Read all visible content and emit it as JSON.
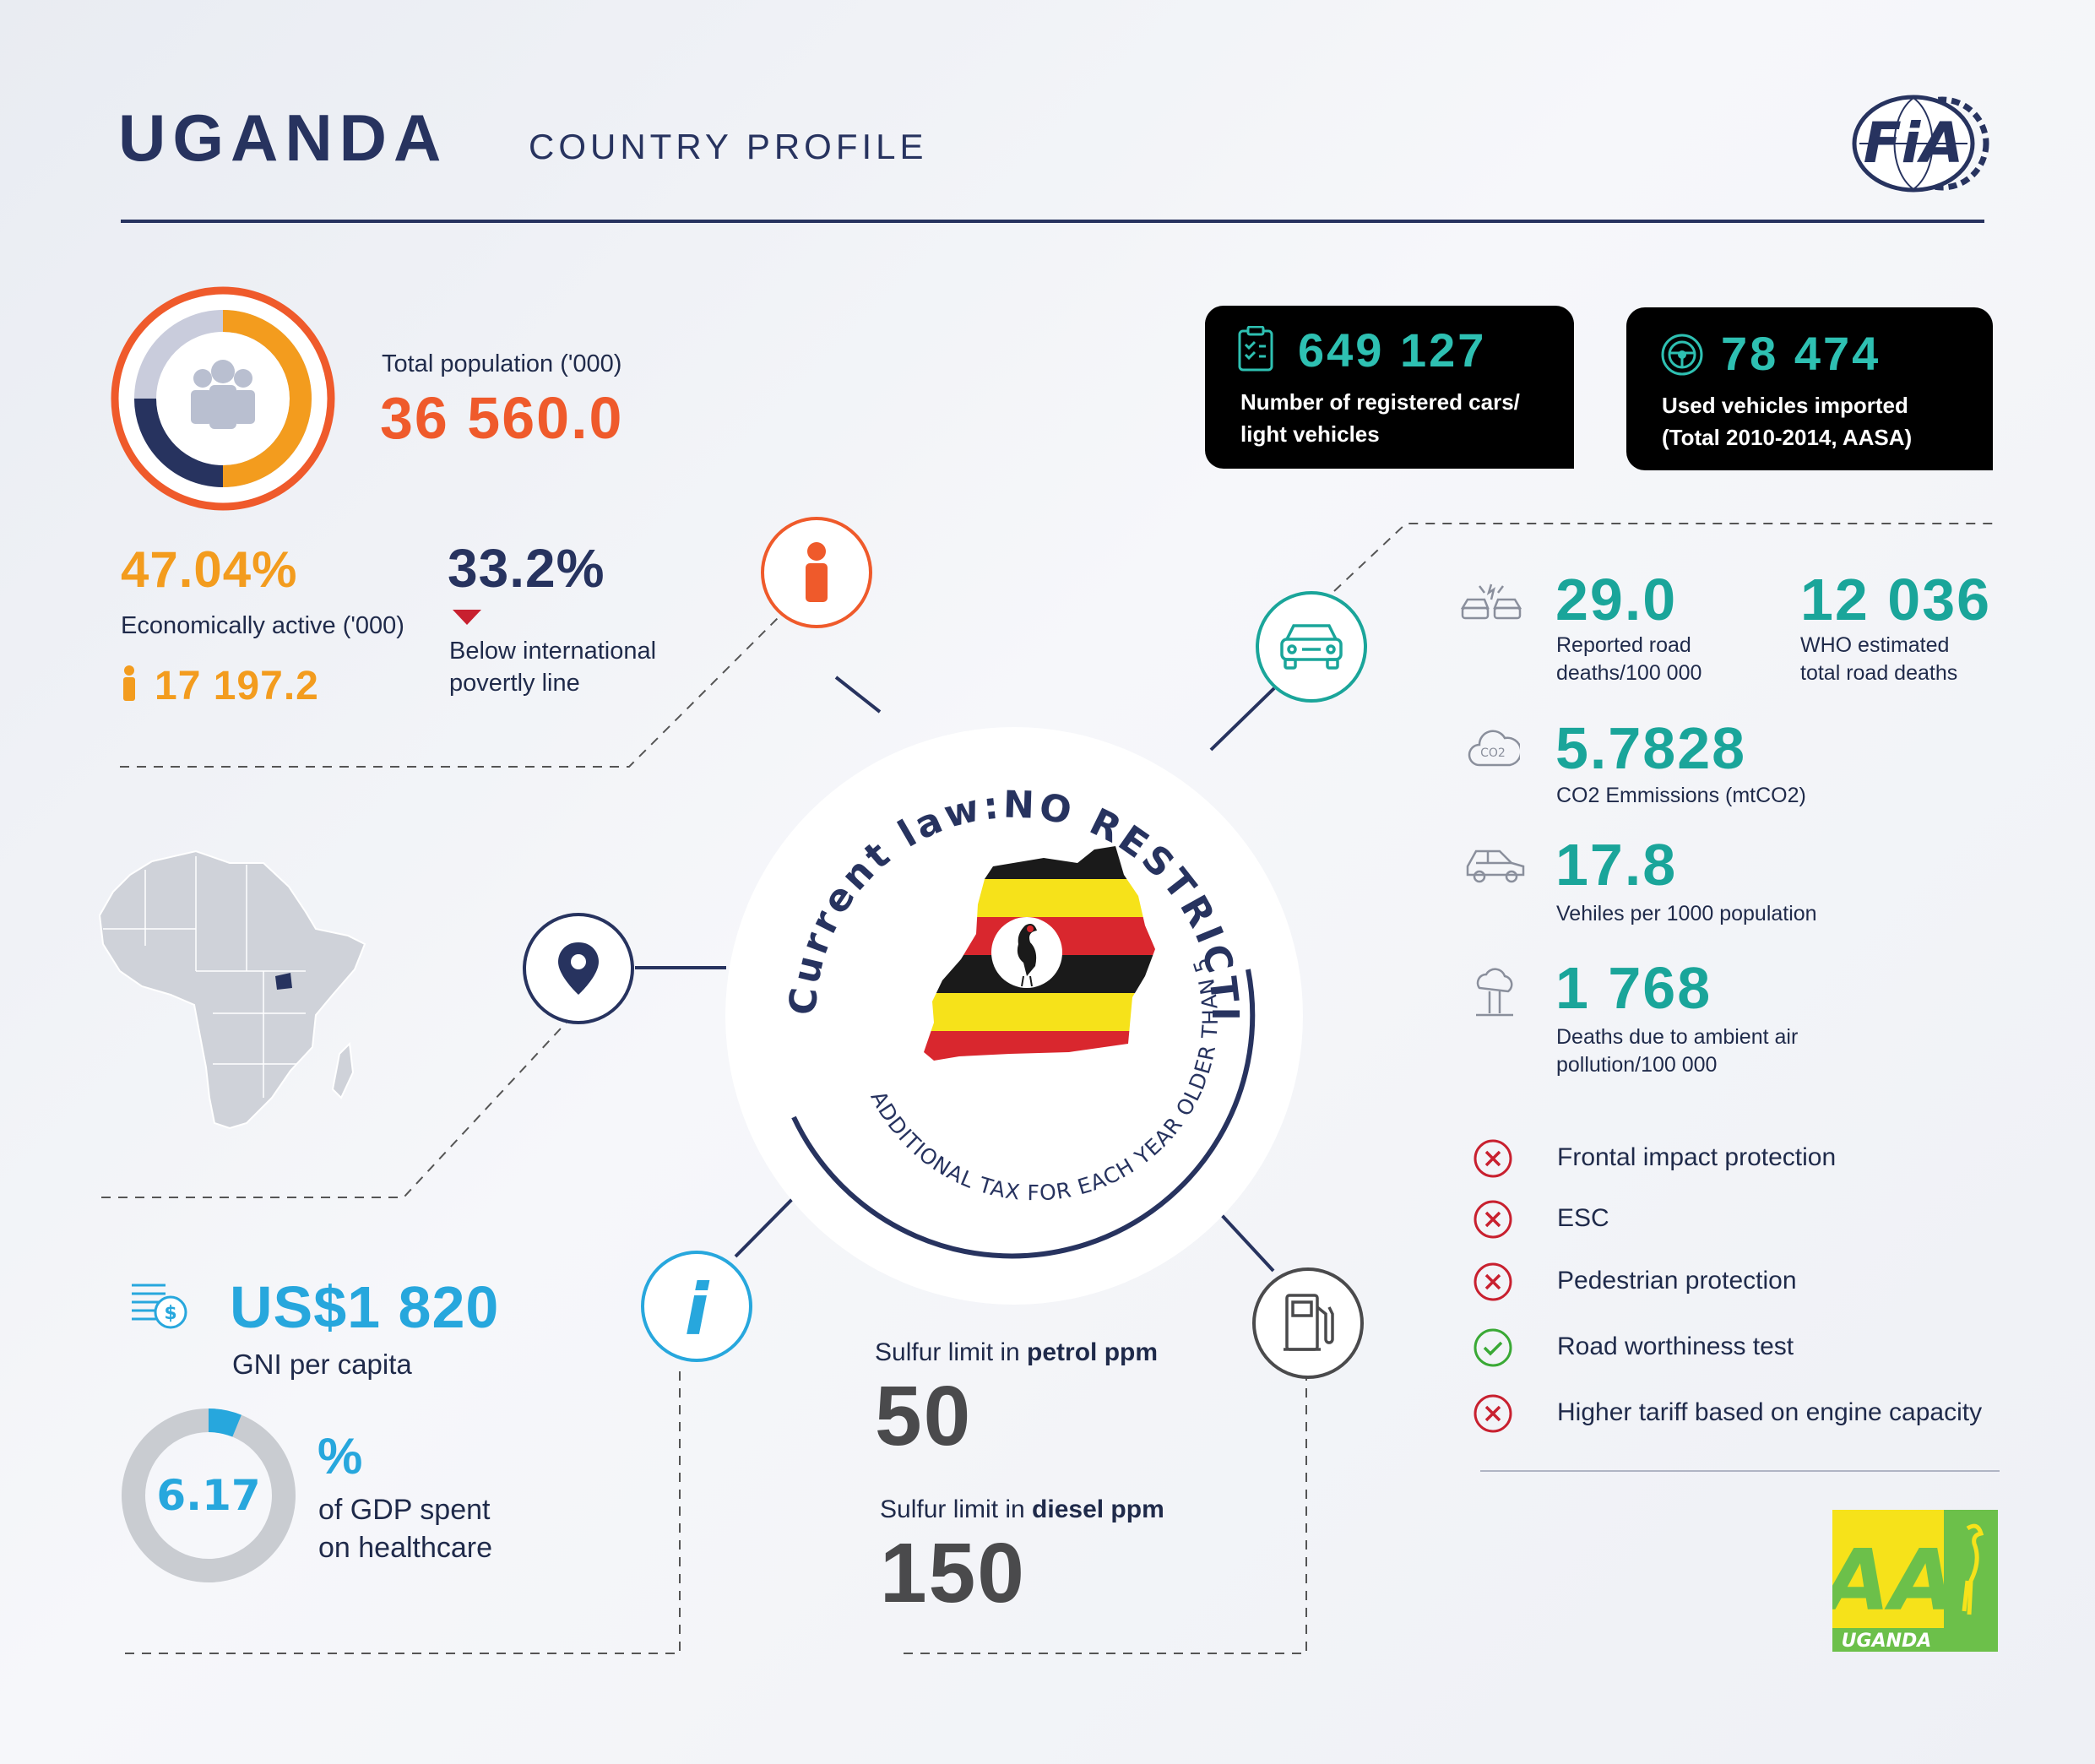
{
  "header": {
    "title": "UGANDA",
    "subtitle": "COUNTRY PROFILE",
    "fia_logo_text": "FiA"
  },
  "population": {
    "label": "Total population ('000)",
    "value": "36 560.0",
    "icon": "people-icon"
  },
  "economic": {
    "percent": "47.04%",
    "label": "Economically active ('000)",
    "value": "17 197.2"
  },
  "poverty": {
    "percent": "33.2%",
    "label_line1": "Below international",
    "label_line2": "povertly line"
  },
  "registered_cars": {
    "value": "649 127",
    "label_line1": "Number of registered cars/",
    "label_line2": "light vehicles"
  },
  "used_imported": {
    "value": "78 474",
    "label_line1": "Used vehicles imported",
    "label_line2": "(Total 2010-2014, AASA)"
  },
  "road_deaths": {
    "value": "29.0",
    "label_line1": "Reported road",
    "label_line2": "deaths/100 000"
  },
  "who_deaths": {
    "value": "12 036",
    "label_line1": "WHO estimated",
    "label_line2": "total road deaths"
  },
  "co2": {
    "value": "5.7828",
    "label": "CO2 Emmissions (mtCO2)",
    "icon_text": "CO2"
  },
  "vehicles_per_1000": {
    "value": "17.8",
    "label": "Vehiles per 1000 population"
  },
  "air_pollution": {
    "value": "1 768",
    "label_line1": "Deaths due to ambient air",
    "label_line2": "pollution/100 000"
  },
  "center": {
    "arc_top": "Current law:NO RESTRICTIONS",
    "arc_bottom": "ADDITIONAL TAX FOR EACH YEAR OLDER THAN 5"
  },
  "gni": {
    "value": "US$1 820",
    "label": "GNI per capita"
  },
  "health": {
    "value": "6.17",
    "fraction": 0.0617,
    "unit": "%",
    "label_line1": "of GDP spent",
    "label_line2": "on healthcare"
  },
  "sulfur": {
    "petrol_label_prefix": "Sulfur limit in ",
    "petrol_label_bold": "petrol ppm",
    "petrol_value": "50",
    "diesel_label_prefix": "Sulfur limit in ",
    "diesel_label_bold": "diesel ppm",
    "diesel_value": "150"
  },
  "checklist": [
    {
      "label": "Frontal impact protection",
      "status": "no"
    },
    {
      "label": "ESC",
      "status": "no"
    },
    {
      "label": "Pedestrian protection",
      "status": "no"
    },
    {
      "label": "Road worthiness test",
      "status": "yes"
    },
    {
      "label": "Higher tariff based on engine capacity",
      "status": "no"
    }
  ],
  "aa_logo": {
    "text": "AA",
    "country": "UGANDA"
  },
  "colors": {
    "navy": "#27335f",
    "orange": "#ef5a2b",
    "amber": "#f39c1e",
    "teal": "#1aa59a",
    "blue": "#27a7dd",
    "red": "#c8202f",
    "green": "#3aa935"
  }
}
